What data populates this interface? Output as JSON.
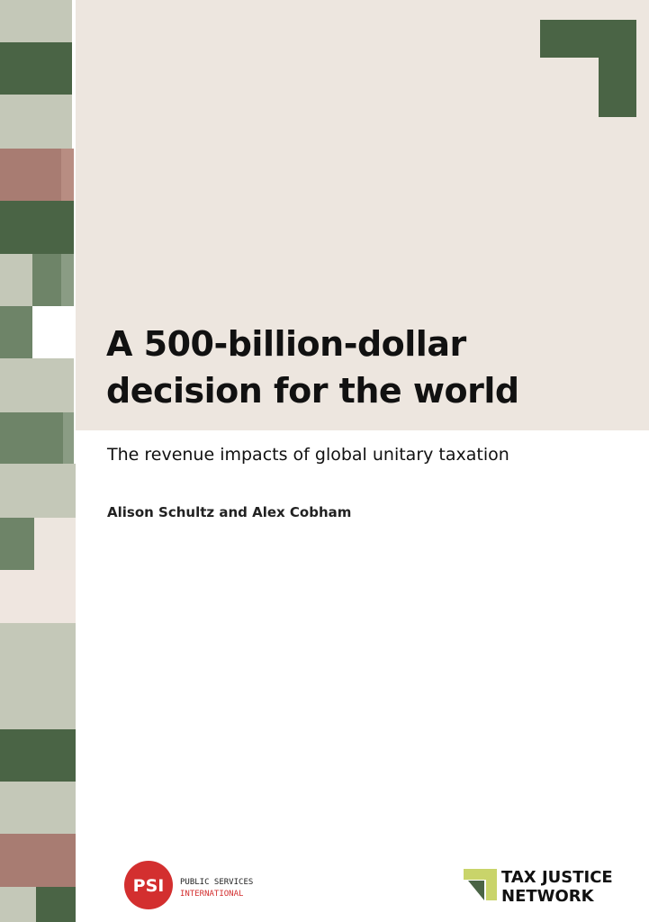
{
  "title": "A 500-billion-dollar decision for the world",
  "subtitle": "The revenue impacts of global unitary taxation",
  "authors": "Alison Schultz and Alex Cobham",
  "logos": {
    "psi": {
      "mark": "PSI",
      "line1": "PUBLIC SERVICES",
      "line2": "INTERNATIONAL"
    },
    "tjn": {
      "line1": "TAX JUSTICE",
      "line2": "NETWORK"
    }
  }
}
